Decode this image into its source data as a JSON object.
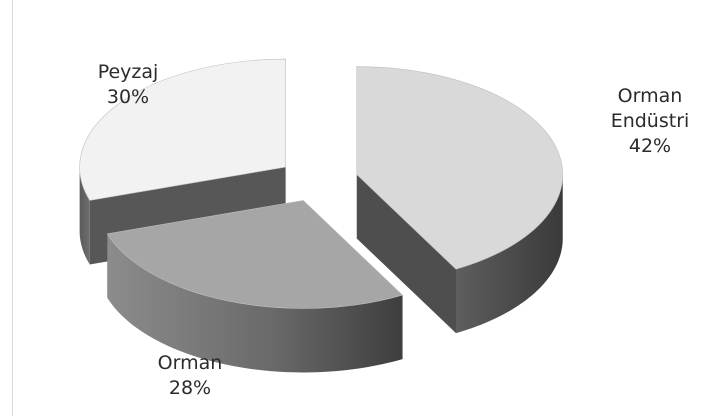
{
  "chart_data": {
    "type": "pie",
    "style": "3d-exploded",
    "categories": [
      "Orman Endüstri",
      "Orman",
      "Peyzaj"
    ],
    "values": [
      42,
      28,
      30
    ],
    "value_suffix": "%",
    "legend": "none",
    "labels": [
      {
        "name": "Orman",
        "name2": "Endüstri",
        "value": "42%"
      },
      {
        "name": "Orman",
        "value": "28%"
      },
      {
        "name": "Peyzaj",
        "value": "30%"
      }
    ],
    "colors": {
      "orman_endustri_top": "#d9d9d9",
      "orman_top": "#a6a6a6",
      "peyzaj_top": "#f2f2f2"
    }
  }
}
